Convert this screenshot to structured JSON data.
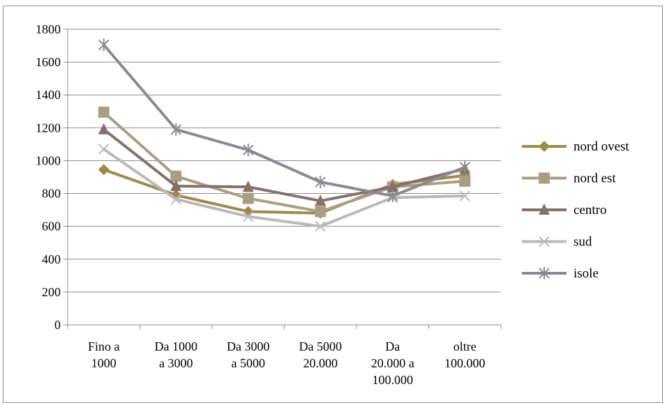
{
  "chart_data": {
    "type": "line",
    "title": "",
    "xlabel": "",
    "ylabel": "",
    "ylim": [
      0,
      1800
    ],
    "yticks": [
      0,
      200,
      400,
      600,
      800,
      1000,
      1200,
      1400,
      1600,
      1800
    ],
    "grid": true,
    "legend_position": "right",
    "categories": [
      [
        "Fino a",
        "1000"
      ],
      [
        "Da 1000",
        "a 3000"
      ],
      [
        "Da 3000",
        "a 5000"
      ],
      [
        "Da 5000",
        "20.000"
      ],
      [
        "Da",
        "20.000 a",
        "100.000"
      ],
      [
        "oltre",
        "100.000"
      ]
    ],
    "series": [
      {
        "name": "nord ovest",
        "color": "#9c8a4e",
        "marker": "diamond",
        "values": [
          945,
          790,
          690,
          680,
          855,
          910
        ]
      },
      {
        "name": "nord est",
        "color": "#a99e82",
        "marker": "square",
        "values": [
          1295,
          905,
          770,
          690,
          840,
          875
        ]
      },
      {
        "name": "centro",
        "color": "#85706a",
        "marker": "triangle",
        "values": [
          1190,
          845,
          840,
          755,
          840,
          950
        ]
      },
      {
        "name": "sud",
        "color": "#b9b9b7",
        "marker": "x",
        "values": [
          1070,
          765,
          660,
          600,
          775,
          785
        ]
      },
      {
        "name": "isole",
        "color": "#8b8892",
        "marker": "star",
        "values": [
          1705,
          1190,
          1065,
          870,
          785,
          960
        ]
      }
    ]
  }
}
